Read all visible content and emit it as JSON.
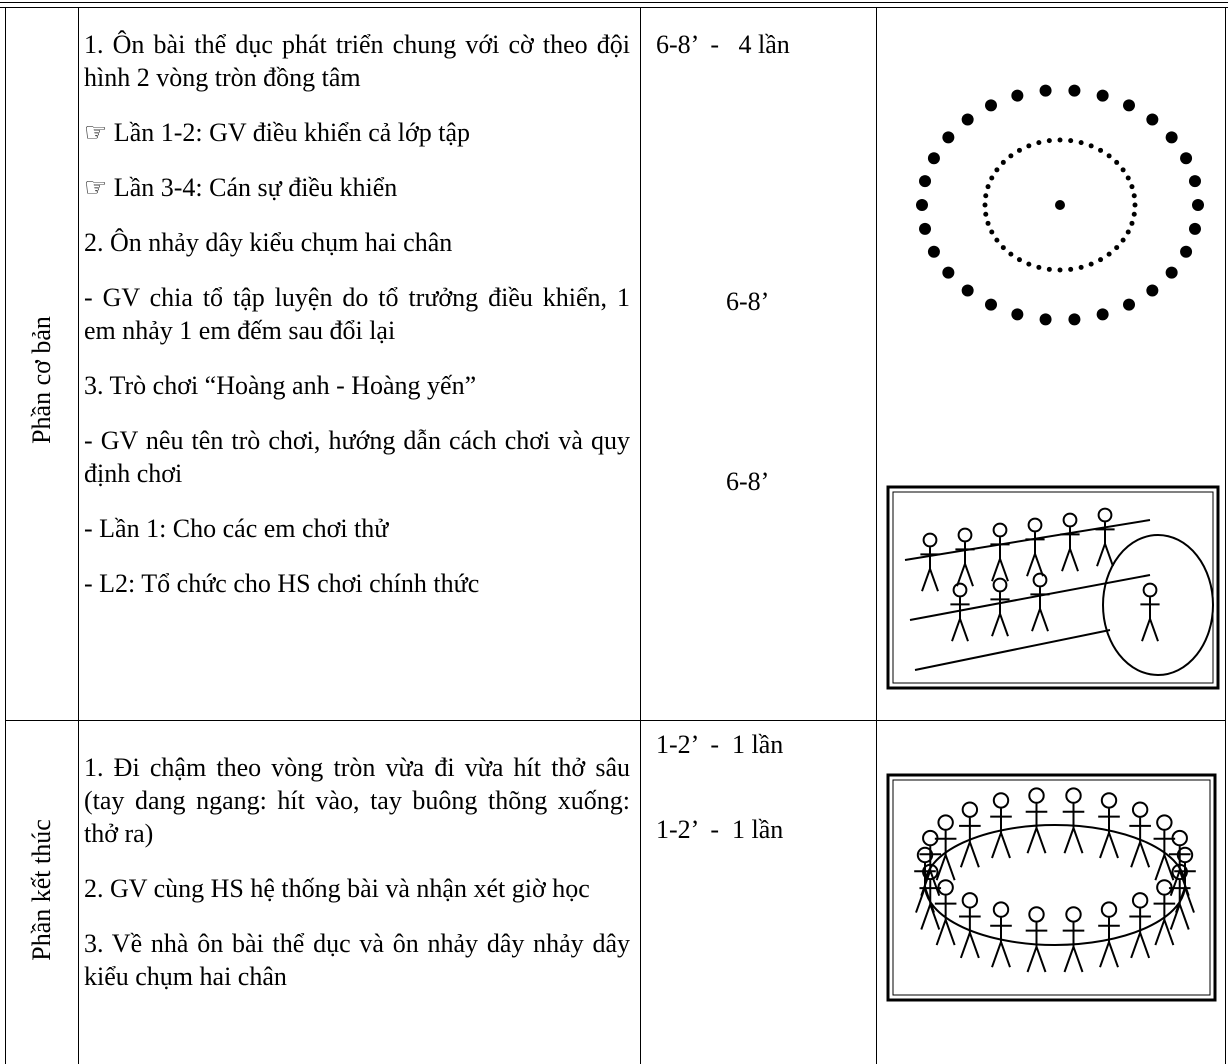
{
  "table": {
    "rows": [
      {
        "section": "Phần cơ bản",
        "items": [
          "1. Ôn bài thể dục phát triển chung với cờ theo đội hình 2 vòng tròn đồng tâm",
          "☞ Lần 1-2: GV điều khiển cả lớp tập",
          "☞ Lần 3-4: Cán sự điều khiển",
          "2. Ôn nhảy dây kiểu chụm hai chân",
          "- GV chia tổ tập luyện do tổ trưởng điều khiển, 1 em nhảy 1 em đếm sau đổi lại",
          "3. Trò chơi “Hoàng anh - Hoàng yến”",
          "- GV nêu tên trò chơi, hướng dẫn cách chơi và quy định chơi",
          "- Lần 1: Cho các em chơi thử",
          "- L2: Tổ chức cho HS chơi chính thức"
        ],
        "times": [
          "6-8’  -   4 lần",
          "6-8’",
          "6-8’"
        ]
      },
      {
        "section": "Phần kết thúc",
        "items": [
          "1. Đi chậm theo vòng tròn vừa đi vừa hít thở sâu (tay dang ngang: hít vào, tay buông thõng xuống: thở ra)",
          "2. GV cùng HS hệ thống bài và nhận xét giờ học",
          "3. Về nhà ôn bài thể dục và ôn nhảy dây nhảy dây kiểu chụm hai chân"
        ],
        "times": [
          "1-2’  -  1 lần",
          "1-2’  -  1 lần"
        ]
      }
    ]
  }
}
